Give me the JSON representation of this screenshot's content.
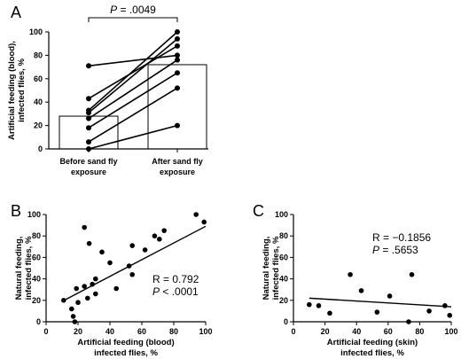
{
  "chart_data": [
    {
      "panel": "A",
      "type": "bar",
      "categories": [
        "Before sand fly exposure",
        "After sand fly exposure"
      ],
      "category_labels": [
        [
          "Before sand fly",
          "exposure"
        ],
        [
          "After sand fly",
          "exposure"
        ]
      ],
      "values": [
        28,
        72
      ],
      "paired_points": [
        [
          71,
          80
        ],
        [
          43,
          88
        ],
        [
          33,
          100
        ],
        [
          31,
          94
        ],
        [
          26,
          76
        ],
        [
          18,
          65
        ],
        [
          6,
          52
        ],
        [
          0,
          20
        ]
      ],
      "ylabel": [
        "Artificial feeding (blood),",
        "infected flies, %"
      ],
      "ylim": [
        0,
        100
      ],
      "yticks": [
        0,
        20,
        40,
        60,
        80,
        100
      ],
      "annotation": {
        "label": "P = .0049",
        "p_letter": "P",
        "p_rest": " = .0049"
      }
    },
    {
      "panel": "B",
      "type": "scatter",
      "points": [
        [
          11,
          20
        ],
        [
          16,
          12
        ],
        [
          17,
          5
        ],
        [
          18,
          0
        ],
        [
          19,
          31
        ],
        [
          20,
          18
        ],
        [
          24,
          33
        ],
        [
          24,
          88
        ],
        [
          26,
          22
        ],
        [
          27,
          73
        ],
        [
          29,
          35
        ],
        [
          31,
          40
        ],
        [
          31,
          26
        ],
        [
          35,
          65
        ],
        [
          40,
          55
        ],
        [
          44,
          31
        ],
        [
          52,
          52
        ],
        [
          54,
          71
        ],
        [
          54,
          44
        ],
        [
          62,
          67
        ],
        [
          68,
          80
        ],
        [
          71,
          77
        ],
        [
          74,
          85
        ],
        [
          94,
          100
        ],
        [
          99,
          93
        ]
      ],
      "regression": [
        [
          10,
          19
        ],
        [
          100,
          89
        ]
      ],
      "xlabel": [
        "Artificial feeding (blood)",
        "infected flies, %"
      ],
      "ylabel": [
        "Natural feeding,",
        "infected flies, %"
      ],
      "xlim": [
        0,
        100
      ],
      "ylim": [
        0,
        100
      ],
      "xticks": [
        0,
        20,
        40,
        60,
        80,
        100
      ],
      "yticks": [
        0,
        20,
        40,
        60,
        80,
        100
      ],
      "stats": {
        "r": "R = 0.792",
        "p_letter": "P",
        "p_rest": " < .0001"
      }
    },
    {
      "panel": "C",
      "type": "scatter",
      "points": [
        [
          10,
          16
        ],
        [
          16,
          15
        ],
        [
          23,
          8
        ],
        [
          36,
          44
        ],
        [
          43,
          29
        ],
        [
          53,
          9
        ],
        [
          61,
          24
        ],
        [
          73,
          0
        ],
        [
          75,
          44
        ],
        [
          86,
          10
        ],
        [
          96,
          15
        ],
        [
          99,
          6
        ]
      ],
      "regression": [
        [
          10,
          22
        ],
        [
          100,
          14
        ]
      ],
      "xlabel": [
        "Artificial feeding (skin)",
        "infected flies, %"
      ],
      "ylabel": [
        "Natural feeding,",
        "infected flies, %"
      ],
      "xlim": [
        0,
        100
      ],
      "ylim": [
        0,
        100
      ],
      "xticks": [
        0,
        20,
        40,
        60,
        80,
        100
      ],
      "yticks": [
        0,
        20,
        40,
        60,
        80,
        100
      ],
      "stats": {
        "r": "R = −0.1856",
        "p_letter": "P",
        "p_rest": " = .5653"
      }
    }
  ]
}
